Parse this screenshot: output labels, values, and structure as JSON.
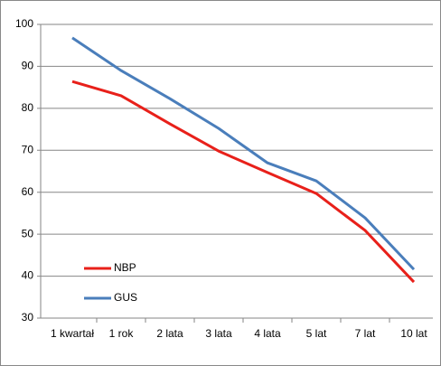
{
  "chart_data": {
    "type": "line",
    "categories": [
      "1 kwartał",
      "1 rok",
      "2 lata",
      "3 lata",
      "4 lata",
      "5 lat",
      "7 lat",
      "10 lat"
    ],
    "series": [
      {
        "name": "NBP",
        "color": "#e8201a",
        "values": [
          86.4,
          83,
          76.3,
          69.8,
          64.7,
          59.7,
          50.9,
          38.6
        ]
      },
      {
        "name": "GUS",
        "color": "#4a7ebb",
        "values": [
          96.8,
          89,
          82.3,
          75.2,
          67,
          62.7,
          53.9,
          41.6
        ]
      }
    ],
    "ylim": [
      30,
      100
    ],
    "yticks": [
      30,
      40,
      50,
      60,
      70,
      80,
      90,
      100
    ],
    "grid": true,
    "legend": "lower left"
  }
}
